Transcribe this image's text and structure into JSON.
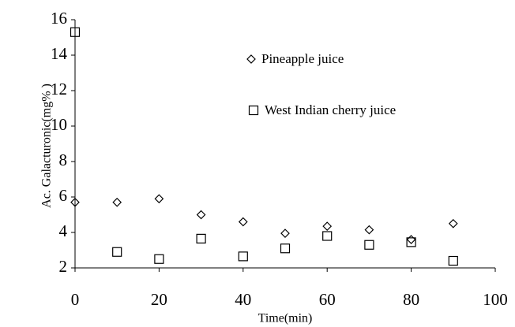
{
  "chart_data": {
    "type": "scatter",
    "x_label": "Time(min)",
    "y_label": "Ac. Galacturonic(mg% )",
    "series": [
      {
        "name": "Pineapple juice",
        "marker": "diamond",
        "color": "#000000",
        "x": [
          0,
          10,
          20,
          30,
          40,
          50,
          60,
          70,
          80,
          90
        ],
        "values": [
          5.7,
          5.7,
          5.9,
          5.0,
          4.6,
          3.95,
          4.35,
          4.15,
          3.6,
          4.5
        ]
      },
      {
        "name": "West Indian cherry juice",
        "marker": "square",
        "color": "#000000",
        "x": [
          0,
          10,
          20,
          30,
          40,
          50,
          60,
          70,
          80,
          90
        ],
        "values": [
          15.3,
          2.9,
          2.5,
          3.65,
          2.65,
          3.1,
          3.8,
          3.3,
          3.45,
          2.4
        ]
      }
    ],
    "xlim": [
      0,
      100
    ],
    "xticks": [
      0,
      20,
      40,
      60,
      80,
      100
    ],
    "ylim": [
      2,
      16
    ],
    "yticks": [
      2,
      4,
      6,
      8,
      10,
      12,
      14,
      16
    ],
    "grid": false
  }
}
